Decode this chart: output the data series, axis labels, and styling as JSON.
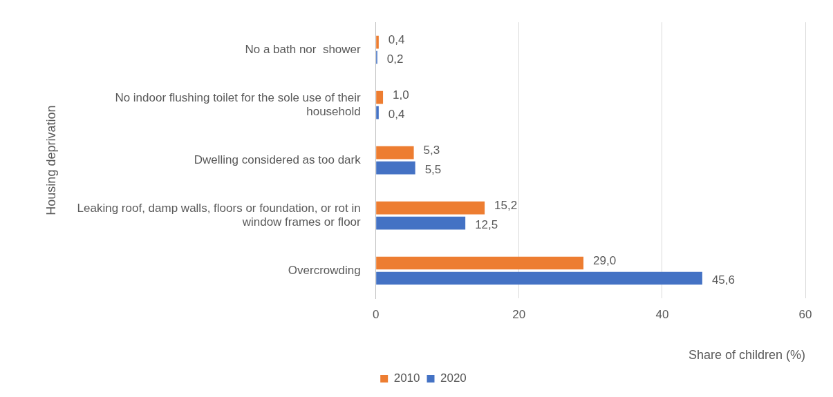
{
  "chart_data": {
    "type": "bar",
    "orientation": "horizontal",
    "ylabel": "Housing deprivation",
    "xlabel": "Share of children (%)",
    "categories": [
      "No a bath nor  shower",
      "No indoor flushing toilet for the sole use of their household",
      "Dwelling considered as too dark",
      "Leaking roof, damp walls, floors or foundation, or rot in window frames or floor",
      "Overcrowding"
    ],
    "series": [
      {
        "name": "2010",
        "color": "#ed7d31",
        "values": [
          0.4,
          1.0,
          5.3,
          15.2,
          29.0
        ],
        "value_labels": [
          "0,4",
          "1,0",
          "5,3",
          "15,2",
          "29,0"
        ]
      },
      {
        "name": "2020",
        "color": "#4472c4",
        "values": [
          0.2,
          0.4,
          5.5,
          12.5,
          45.6
        ],
        "value_labels": [
          "0,2",
          "0,4",
          "5,5",
          "12,5",
          "45,6"
        ]
      }
    ],
    "xlim": [
      0,
      60
    ],
    "xticks": [
      0,
      20,
      40,
      60
    ],
    "grid": "x",
    "legend": "bottom"
  }
}
